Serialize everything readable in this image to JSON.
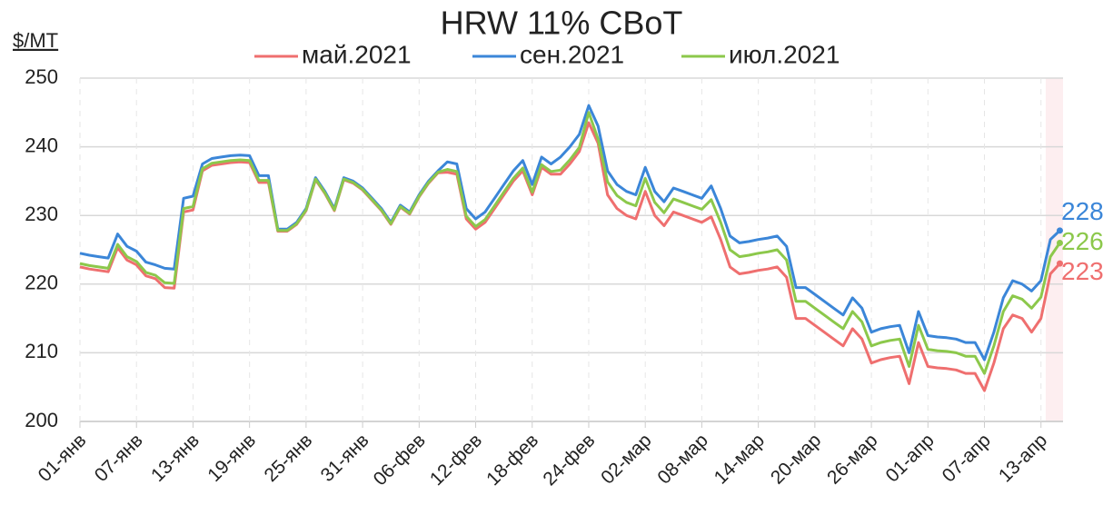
{
  "chart_data": {
    "type": "line",
    "title": "HRW 11% CBoT",
    "y_label": "$/MT",
    "ylim": [
      200,
      250
    ],
    "yticks": [
      200,
      210,
      220,
      230,
      240,
      250
    ],
    "grid": true,
    "legend": "top",
    "categories": [
      "01-янв",
      null,
      null,
      null,
      null,
      null,
      "07-янв",
      null,
      null,
      null,
      null,
      null,
      "13-янв",
      null,
      null,
      null,
      null,
      null,
      "19-янв",
      null,
      null,
      null,
      null,
      null,
      "25-янв",
      null,
      null,
      null,
      null,
      null,
      "31-янв",
      null,
      null,
      null,
      null,
      null,
      "06-фев",
      null,
      null,
      null,
      null,
      null,
      "12-фев",
      null,
      null,
      null,
      null,
      null,
      "18-фев",
      null,
      null,
      null,
      null,
      null,
      "24-фев",
      null,
      null,
      null,
      null,
      null,
      "02-мар",
      null,
      null,
      null,
      null,
      null,
      "08-мар",
      null,
      null,
      null,
      null,
      null,
      "14-мар",
      null,
      null,
      null,
      null,
      null,
      "20-мар",
      null,
      null,
      null,
      null,
      null,
      "26-мар",
      null,
      null,
      null,
      null,
      null,
      "01-апр",
      null,
      null,
      null,
      null,
      null,
      "07-апр",
      null,
      null,
      null,
      null,
      null,
      "13-апр",
      null,
      null
    ],
    "series": [
      {
        "name": "май.2021",
        "color": "#ef6f6f",
        "end_label": "223",
        "values": [
          222.5,
          222.2,
          222,
          221.8,
          225.3,
          223.5,
          222.8,
          221.2,
          220.8,
          219.5,
          219.4,
          230.5,
          230.8,
          236.5,
          237.3,
          237.5,
          237.7,
          237.8,
          237.7,
          234.8,
          234.8,
          227.7,
          227.7,
          228.7,
          230.7,
          235.2,
          233.2,
          230.7,
          235.2,
          234.7,
          233.7,
          232.2,
          230.7,
          228.7,
          231.2,
          230.2,
          232.7,
          234.7,
          236.2,
          236.3,
          236,
          229.5,
          228,
          229,
          231,
          233,
          235,
          236.5,
          233,
          237,
          236,
          236,
          237.5,
          239.3,
          243.5,
          240.5,
          233,
          231,
          230,
          229.5,
          233.5,
          230,
          228.5,
          230.5,
          230,
          229.5,
          229,
          229.8,
          226.5,
          222.5,
          221.5,
          221.7,
          222,
          222.2,
          222.5,
          221,
          215,
          215,
          214,
          213,
          212,
          211,
          213.5,
          212,
          208.5,
          209,
          209.3,
          209.5,
          205.5,
          211.5,
          208,
          207.8,
          207.7,
          207.5,
          207,
          207,
          204.5,
          208.5,
          213.5,
          215.5,
          215,
          213,
          215,
          221.5,
          223
        ]
      },
      {
        "name": "сен.2021",
        "color": "#3b86d8",
        "end_label": "228",
        "values": [
          224.5,
          224.2,
          224,
          223.8,
          227.3,
          225.5,
          224.8,
          223.2,
          222.8,
          222.3,
          222.2,
          232.5,
          232.8,
          237.5,
          238.3,
          238.5,
          238.7,
          238.8,
          238.7,
          235.8,
          235.8,
          228,
          228,
          229,
          231,
          235.5,
          233.5,
          231,
          235.5,
          235,
          234,
          232.5,
          231,
          229,
          231.5,
          230.5,
          233,
          235,
          236.5,
          237.8,
          237.5,
          231,
          229.5,
          230.5,
          232.5,
          234.5,
          236.5,
          238,
          234.5,
          238.5,
          237.5,
          238.5,
          240,
          241.8,
          246,
          243,
          236.5,
          234.5,
          233.5,
          233,
          237,
          233.5,
          232,
          234,
          233.5,
          233,
          232.5,
          234.3,
          231,
          227,
          226,
          226.2,
          226.5,
          226.7,
          227,
          225.5,
          219.5,
          219.5,
          218.5,
          217.5,
          216.5,
          215.5,
          218,
          216.5,
          213,
          213.5,
          213.8,
          214,
          210,
          216,
          212.5,
          212.3,
          212.2,
          212,
          211.5,
          211.5,
          209,
          213,
          218,
          220.5,
          220,
          219,
          220.5,
          226.5,
          227.8
        ]
      },
      {
        "name": "июл.2021",
        "color": "#8cc84b",
        "end_label": "226",
        "values": [
          223,
          222.7,
          222.5,
          222.3,
          225.8,
          224,
          223.3,
          221.7,
          221.3,
          220.2,
          220.1,
          231,
          231.3,
          236.8,
          237.6,
          237.8,
          238,
          238.1,
          238,
          235.1,
          235.1,
          227.8,
          227.8,
          228.8,
          230.8,
          235.3,
          233.3,
          230.8,
          235.3,
          234.8,
          233.8,
          232.3,
          230.8,
          228.8,
          231.3,
          230.3,
          232.8,
          234.8,
          236.3,
          236.7,
          236.4,
          229.9,
          228.4,
          229.4,
          231.4,
          233.4,
          235.4,
          236.9,
          233.4,
          237.4,
          236.4,
          236.6,
          238.1,
          239.9,
          245,
          241.1,
          234.9,
          232.9,
          231.9,
          231.4,
          235.4,
          231.9,
          230.4,
          232.4,
          231.9,
          231.4,
          230.9,
          232.3,
          229,
          225,
          224,
          224.2,
          224.5,
          224.7,
          225,
          223.5,
          217.5,
          217.5,
          216.5,
          215.5,
          214.5,
          213.5,
          216,
          214.5,
          211,
          211.5,
          211.8,
          212,
          208,
          214,
          210.5,
          210.3,
          210.2,
          210,
          209.5,
          209.5,
          207,
          211,
          216,
          218.3,
          217.8,
          216.5,
          218.1,
          224,
          226
        ]
      }
    ]
  }
}
